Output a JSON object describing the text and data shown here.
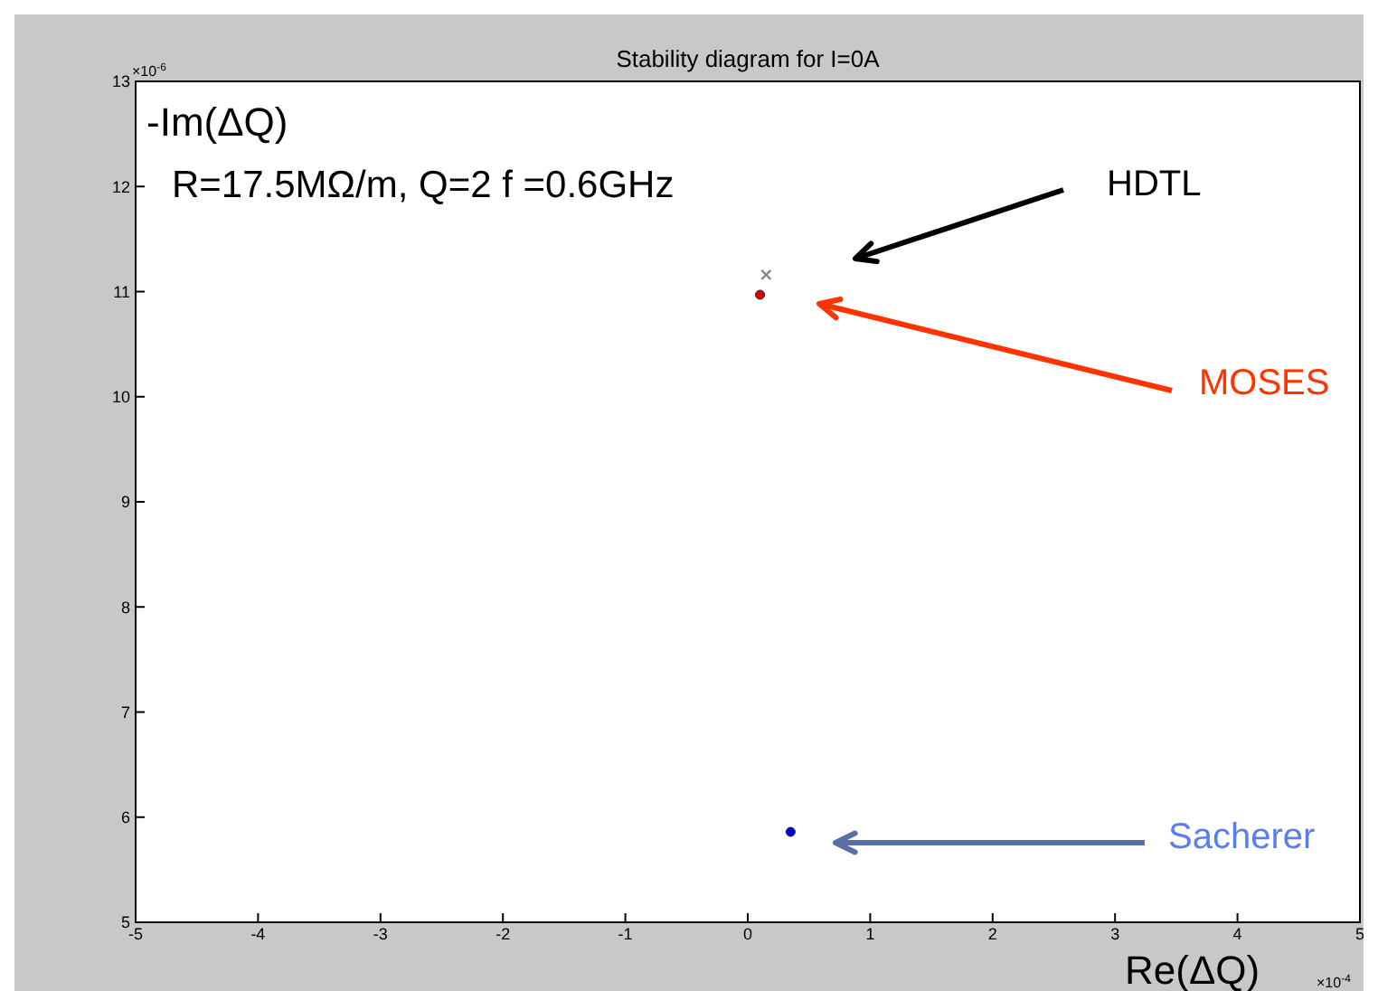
{
  "chart_data": {
    "type": "scatter",
    "title": "Stability diagram for I=0A",
    "xlabel": "Re(ΔQ)",
    "ylabel": "-Im(ΔQ)",
    "annotations": [
      "R=17.5MΩ/m,   Q=2   f =0.6GHz",
      "×10$^{-6}$",
      "×10$^{-4}$"
    ],
    "series": [
      {
        "name": "HDTL",
        "color": "#888888",
        "marker": "cross",
        "x": [
          0.15
        ],
        "values": [
          11.16
        ]
      },
      {
        "name": "MOSES",
        "color": "#dd0000",
        "marker": "circle",
        "x": [
          0.1
        ],
        "values": [
          10.97
        ]
      },
      {
        "name": "Sacherer",
        "color": "#0000dd",
        "marker": "circle",
        "x": [
          0.35
        ],
        "values": [
          5.86
        ]
      }
    ],
    "xlim": [
      -5,
      5
    ],
    "xticks": [
      -5,
      -4,
      -3,
      -2,
      -1,
      0,
      1,
      2,
      3,
      4,
      5
    ],
    "ylim": [
      5,
      13
    ],
    "yticks": [
      5,
      6,
      7,
      8,
      9,
      10,
      11,
      12,
      13
    ],
    "grid": false,
    "legend": false
  }
}
